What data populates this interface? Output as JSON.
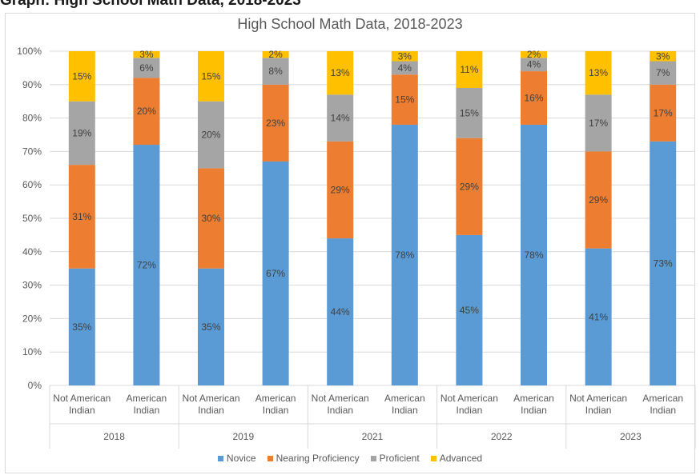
{
  "header": {
    "cropped_text": "Graph: High School Math Data, 2018-2023"
  },
  "chart_data": {
    "type": "bar",
    "stacked": true,
    "title": "High School Math Data, 2018-2023",
    "xlabel": "",
    "ylabel": "",
    "ylim": [
      0,
      100
    ],
    "y_ticks": [
      "0%",
      "10%",
      "20%",
      "30%",
      "40%",
      "50%",
      "60%",
      "70%",
      "80%",
      "90%",
      "100%"
    ],
    "groups": [
      "2018",
      "2019",
      "2021",
      "2022",
      "2023"
    ],
    "categories": [
      [
        "Not American",
        "Indian"
      ],
      [
        "American",
        "Indian"
      ],
      [
        "Not American",
        "Indian"
      ],
      [
        "American",
        "Indian"
      ],
      [
        "Not American",
        "Indian"
      ],
      [
        "American",
        "Indian"
      ],
      [
        "Not American",
        "Indian"
      ],
      [
        "American",
        "Indian"
      ],
      [
        "Not American",
        "Indian"
      ],
      [
        "American",
        "Indian"
      ]
    ],
    "series": [
      {
        "name": "Novice",
        "color": "#5b9bd5",
        "values": [
          35,
          72,
          35,
          67,
          44,
          78,
          45,
          78,
          41,
          73
        ],
        "labels": [
          "35%",
          "72%",
          "35%",
          "67%",
          "44%",
          "78%",
          "45%",
          "78%",
          "41%",
          "73%"
        ]
      },
      {
        "name": "Nearing Proficiency",
        "color": "#ed7d31",
        "values": [
          31,
          20,
          30,
          23,
          29,
          15,
          29,
          16,
          29,
          17
        ],
        "labels": [
          "31%",
          "20%",
          "30%",
          "23%",
          "29%",
          "15%",
          "29%",
          "16%",
          "29%",
          "17%"
        ]
      },
      {
        "name": "Proficient",
        "color": "#a5a5a5",
        "values": [
          19,
          6,
          20,
          8,
          14,
          4,
          15,
          4,
          17,
          7
        ],
        "labels": [
          "19%",
          "6%",
          "20%",
          "8%",
          "14%",
          "4%",
          "15%",
          "4%",
          "17%",
          "7%"
        ]
      },
      {
        "name": "Advanced",
        "color": "#ffc000",
        "values": [
          15,
          3,
          15,
          2,
          13,
          3,
          11,
          2,
          13,
          3
        ],
        "labels": [
          "15%",
          "3%",
          "15%",
          "2%",
          "13%",
          "3%",
          "11%",
          "2%",
          "13%",
          "3%"
        ]
      }
    ],
    "grid": true,
    "legend_position": "bottom"
  }
}
